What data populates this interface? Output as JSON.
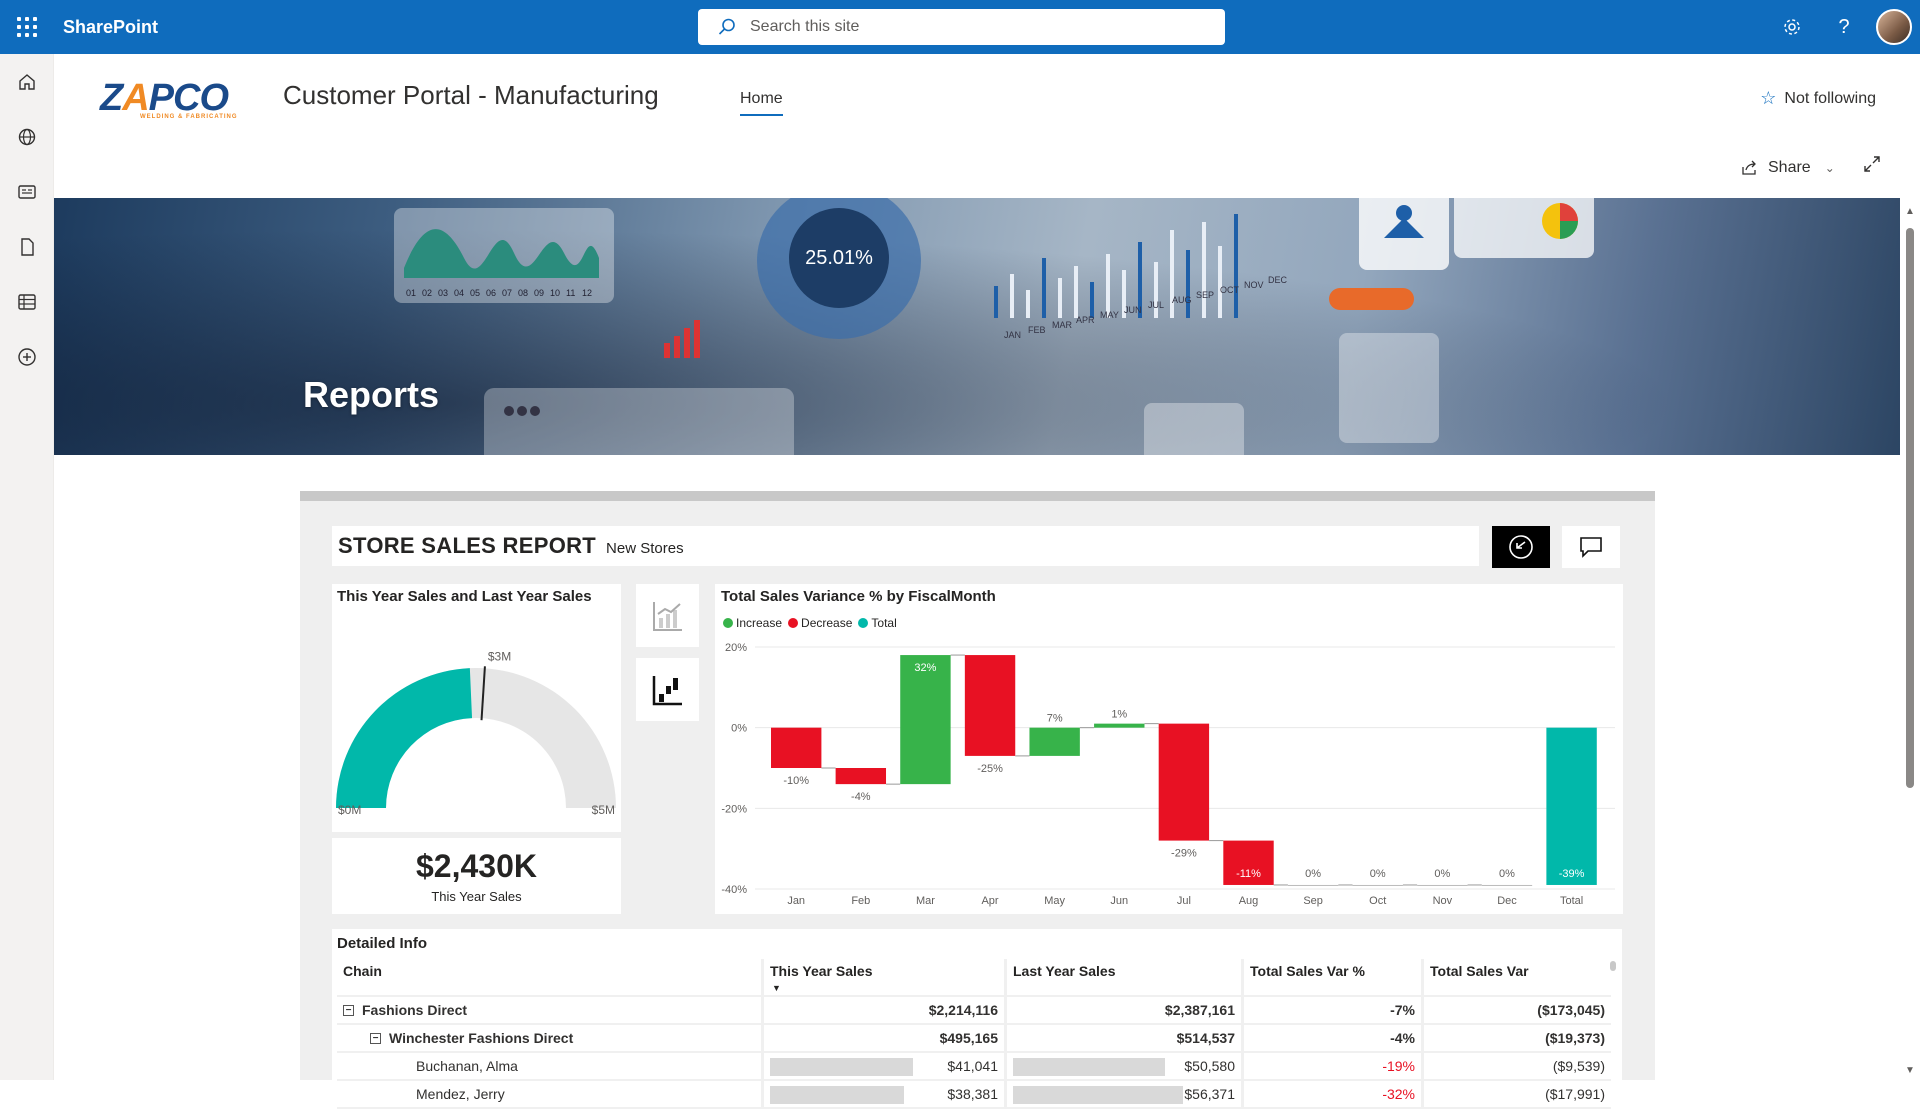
{
  "suite": {
    "brand": "SharePoint",
    "search_placeholder": "Search this site"
  },
  "appbar": {
    "items": [
      "home-icon",
      "globe-icon",
      "news-icon",
      "document-icon",
      "list-icon",
      "add-icon"
    ]
  },
  "site": {
    "logo_text": "ZAPCO",
    "logo_tagline": "WELDING & FABRICATING",
    "title": "Customer Portal - Manufacturing",
    "nav_home": "Home",
    "follow_label": "Not following",
    "share_label": "Share"
  },
  "hero": {
    "title": "Reports",
    "decor_percent": "25.01%",
    "decor_months": [
      "JAN",
      "FEB",
      "MAR",
      "APR",
      "MAY",
      "JUN",
      "JUL",
      "AUG",
      "SEP",
      "OCT",
      "NOV",
      "DEC"
    ],
    "decor_numbers": [
      "01",
      "02",
      "03",
      "04",
      "05",
      "06",
      "07",
      "08",
      "09",
      "10",
      "11",
      "12"
    ]
  },
  "report": {
    "title": "STORE SALES REPORT",
    "subtitle": "New Stores",
    "gauge": {
      "title": "This Year Sales and Last Year Sales",
      "min_label": "$0M",
      "max_label": "$5M",
      "target_label": "$3M",
      "value_fraction": 0.486,
      "target_fraction": 0.52,
      "fill_color": "#01b8aa"
    },
    "card": {
      "value": "$2,430K",
      "label": "This Year Sales"
    },
    "side_icons": [
      "line-chart-icon",
      "waterfall-chart-icon"
    ],
    "table": {
      "title": "Detailed  Info",
      "headers": [
        "Chain",
        "This Year Sales",
        "Last Year Sales",
        "Total Sales Var %",
        "Total Sales Var"
      ],
      "rows": [
        {
          "level": 0,
          "toggle": "−",
          "chain": "Fashions Direct",
          "tys": "$2,214,116",
          "lys": "$2,387,161",
          "pct": "-7%",
          "var": "($173,045)",
          "bold": true,
          "neg": false
        },
        {
          "level": 1,
          "toggle": "−",
          "chain": "Winchester Fashions Direct",
          "tys": "$495,165",
          "lys": "$514,537",
          "pct": "-4%",
          "var": "($19,373)",
          "bold": true,
          "neg": false
        },
        {
          "level": 2,
          "toggle": "",
          "chain": "Buchanan, Alma",
          "tys": "$41,041",
          "lys": "$50,580",
          "pct": "-19%",
          "var": "($9,539)",
          "bold": false,
          "neg": true,
          "tys_bar": 0.78,
          "lys_bar": 0.86
        },
        {
          "level": 2,
          "toggle": "",
          "chain": "Mendez, Jerry",
          "tys": "$38,381",
          "lys": "$56,371",
          "pct": "-32%",
          "var": "($17,991)",
          "bold": false,
          "neg": true,
          "tys_bar": 0.73,
          "lys_bar": 0.96
        }
      ]
    }
  },
  "chart_data": {
    "type": "bar",
    "title": "Total Sales Variance % by FiscalMonth",
    "legend": [
      "Increase",
      "Decrease",
      "Total"
    ],
    "colors": {
      "Increase": "#37b34a",
      "Decrease": "#e81123",
      "Total": "#01b8aa"
    },
    "categories": [
      "Jan",
      "Feb",
      "Mar",
      "Apr",
      "May",
      "Jun",
      "Jul",
      "Aug",
      "Sep",
      "Oct",
      "Nov",
      "Dec",
      "Total"
    ],
    "deltas": [
      -10,
      -4,
      32,
      -25,
      7,
      1,
      -29,
      -11,
      0,
      0,
      0,
      0,
      -39
    ],
    "labels": [
      "-10%",
      "-4%",
      "32%",
      "-25%",
      "7%",
      "1%",
      "-29%",
      "-11%",
      "0%",
      "0%",
      "0%",
      "0%",
      "-39%"
    ],
    "ylim": [
      -40,
      20
    ],
    "yticks": [
      "20%",
      "0%",
      "-20%",
      "-40%"
    ],
    "ytick_values": [
      20,
      0,
      -20,
      -40
    ]
  }
}
